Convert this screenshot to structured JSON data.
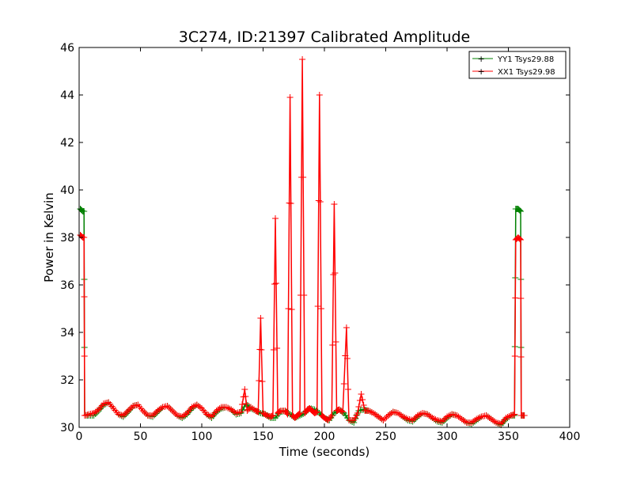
{
  "chart_data": {
    "type": "line",
    "title": "3C274, ID:21397 Calibrated Amplitude",
    "xlabel": "Time (seconds)",
    "ylabel": "Power in Kelvin",
    "xlim": [
      0,
      400
    ],
    "ylim": [
      30,
      46
    ],
    "xticks": [
      0,
      50,
      100,
      150,
      200,
      250,
      300,
      350,
      400
    ],
    "yticks": [
      30,
      32,
      34,
      36,
      38,
      40,
      42,
      44,
      46
    ],
    "grid": false,
    "legend_position": "top-right",
    "series": [
      {
        "name": "YY1 Tsys29.88",
        "color": "#008000",
        "marker": "+",
        "points": [
          [
            1,
            39.2
          ],
          [
            3,
            39.1
          ],
          [
            4,
            39.1
          ],
          [
            4.5,
            30.5
          ],
          [
            8,
            30.5
          ],
          [
            12,
            30.5
          ],
          [
            16,
            30.7
          ],
          [
            20,
            30.95
          ],
          [
            24,
            31.05
          ],
          [
            28,
            30.8
          ],
          [
            32,
            30.55
          ],
          [
            36,
            30.45
          ],
          [
            40,
            30.65
          ],
          [
            44,
            30.9
          ],
          [
            48,
            30.95
          ],
          [
            52,
            30.7
          ],
          [
            56,
            30.5
          ],
          [
            60,
            30.45
          ],
          [
            64,
            30.65
          ],
          [
            68,
            30.85
          ],
          [
            72,
            30.9
          ],
          [
            76,
            30.7
          ],
          [
            80,
            30.5
          ],
          [
            84,
            30.4
          ],
          [
            88,
            30.55
          ],
          [
            92,
            30.8
          ],
          [
            96,
            30.95
          ],
          [
            100,
            30.8
          ],
          [
            104,
            30.55
          ],
          [
            108,
            30.4
          ],
          [
            112,
            30.65
          ],
          [
            116,
            30.8
          ],
          [
            120,
            30.85
          ],
          [
            124,
            30.75
          ],
          [
            128,
            30.55
          ],
          [
            132,
            30.6
          ],
          [
            136,
            31.0
          ],
          [
            140,
            30.8
          ],
          [
            144,
            30.7
          ],
          [
            148,
            30.6
          ],
          [
            152,
            30.55
          ],
          [
            156,
            30.4
          ],
          [
            160,
            30.4
          ],
          [
            164,
            30.65
          ],
          [
            168,
            30.7
          ],
          [
            172,
            30.55
          ],
          [
            176,
            30.4
          ],
          [
            180,
            30.5
          ],
          [
            184,
            30.6
          ],
          [
            188,
            30.8
          ],
          [
            192,
            30.75
          ],
          [
            196,
            30.6
          ],
          [
            200,
            30.4
          ],
          [
            204,
            30.3
          ],
          [
            208,
            30.6
          ],
          [
            212,
            30.75
          ],
          [
            216,
            30.6
          ],
          [
            220,
            30.3
          ],
          [
            224,
            30.2
          ],
          [
            228,
            30.7
          ],
          [
            232,
            30.75
          ],
          [
            236,
            30.7
          ],
          [
            240,
            30.6
          ],
          [
            244,
            30.45
          ],
          [
            248,
            30.3
          ],
          [
            252,
            30.5
          ],
          [
            256,
            30.65
          ],
          [
            260,
            30.6
          ],
          [
            264,
            30.45
          ],
          [
            268,
            30.3
          ],
          [
            272,
            30.25
          ],
          [
            276,
            30.45
          ],
          [
            280,
            30.6
          ],
          [
            284,
            30.55
          ],
          [
            288,
            30.4
          ],
          [
            292,
            30.25
          ],
          [
            296,
            30.2
          ],
          [
            300,
            30.4
          ],
          [
            304,
            30.55
          ],
          [
            308,
            30.5
          ],
          [
            312,
            30.35
          ],
          [
            316,
            30.2
          ],
          [
            320,
            30.15
          ],
          [
            324,
            30.3
          ],
          [
            328,
            30.45
          ],
          [
            332,
            30.5
          ],
          [
            336,
            30.35
          ],
          [
            340,
            30.2
          ],
          [
            344,
            30.1
          ],
          [
            348,
            30.35
          ],
          [
            352,
            30.5
          ],
          [
            355,
            30.5
          ],
          [
            356,
            39.2
          ],
          [
            358,
            39.2
          ],
          [
            360,
            39.1
          ],
          [
            360.5,
            30.5
          ],
          [
            363,
            30.5
          ]
        ]
      },
      {
        "name": "XX1 Tsys29.98",
        "color": "#ff0000",
        "marker": "+",
        "points": [
          [
            1,
            38.1
          ],
          [
            3,
            38.0
          ],
          [
            4,
            38.0
          ],
          [
            4.5,
            30.5
          ],
          [
            8,
            30.55
          ],
          [
            12,
            30.6
          ],
          [
            16,
            30.75
          ],
          [
            20,
            31.0
          ],
          [
            24,
            31.05
          ],
          [
            28,
            30.8
          ],
          [
            32,
            30.55
          ],
          [
            36,
            30.5
          ],
          [
            40,
            30.7
          ],
          [
            44,
            30.9
          ],
          [
            48,
            30.95
          ],
          [
            52,
            30.7
          ],
          [
            56,
            30.5
          ],
          [
            60,
            30.5
          ],
          [
            64,
            30.7
          ],
          [
            68,
            30.85
          ],
          [
            72,
            30.9
          ],
          [
            76,
            30.7
          ],
          [
            80,
            30.5
          ],
          [
            84,
            30.45
          ],
          [
            88,
            30.6
          ],
          [
            92,
            30.85
          ],
          [
            96,
            30.95
          ],
          [
            100,
            30.8
          ],
          [
            104,
            30.55
          ],
          [
            108,
            30.45
          ],
          [
            112,
            30.7
          ],
          [
            116,
            30.85
          ],
          [
            120,
            30.85
          ],
          [
            124,
            30.75
          ],
          [
            128,
            30.6
          ],
          [
            132,
            30.65
          ],
          [
            135,
            31.6
          ],
          [
            137,
            30.7
          ],
          [
            140,
            30.85
          ],
          [
            144,
            30.7
          ],
          [
            146,
            30.65
          ],
          [
            148,
            34.6
          ],
          [
            150,
            30.6
          ],
          [
            153,
            30.5
          ],
          [
            156,
            30.45
          ],
          [
            158,
            30.5
          ],
          [
            160,
            38.8
          ],
          [
            162,
            30.6
          ],
          [
            164,
            30.7
          ],
          [
            168,
            30.7
          ],
          [
            170,
            30.55
          ],
          [
            172,
            43.9
          ],
          [
            174,
            30.5
          ],
          [
            176,
            30.4
          ],
          [
            178,
            30.5
          ],
          [
            180,
            30.6
          ],
          [
            182,
            45.5
          ],
          [
            184,
            30.6
          ],
          [
            186,
            30.75
          ],
          [
            188,
            30.8
          ],
          [
            190,
            30.7
          ],
          [
            192,
            30.6
          ],
          [
            194,
            30.65
          ],
          [
            196,
            44.0
          ],
          [
            198,
            30.5
          ],
          [
            200,
            30.4
          ],
          [
            203,
            30.3
          ],
          [
            206,
            30.5
          ],
          [
            208,
            39.4
          ],
          [
            210,
            30.7
          ],
          [
            212,
            30.75
          ],
          [
            215,
            30.65
          ],
          [
            218,
            34.2
          ],
          [
            220,
            30.3
          ],
          [
            224,
            30.3
          ],
          [
            227,
            30.6
          ],
          [
            230,
            31.4
          ],
          [
            233,
            30.7
          ],
          [
            236,
            30.7
          ],
          [
            240,
            30.6
          ],
          [
            244,
            30.45
          ],
          [
            248,
            30.3
          ],
          [
            252,
            30.5
          ],
          [
            256,
            30.65
          ],
          [
            260,
            30.6
          ],
          [
            264,
            30.45
          ],
          [
            268,
            30.35
          ],
          [
            272,
            30.3
          ],
          [
            276,
            30.5
          ],
          [
            280,
            30.6
          ],
          [
            284,
            30.55
          ],
          [
            288,
            30.4
          ],
          [
            292,
            30.3
          ],
          [
            296,
            30.25
          ],
          [
            300,
            30.45
          ],
          [
            304,
            30.55
          ],
          [
            308,
            30.5
          ],
          [
            312,
            30.35
          ],
          [
            316,
            30.2
          ],
          [
            320,
            30.2
          ],
          [
            324,
            30.35
          ],
          [
            328,
            30.45
          ],
          [
            332,
            30.5
          ],
          [
            336,
            30.35
          ],
          [
            340,
            30.2
          ],
          [
            344,
            30.15
          ],
          [
            348,
            30.4
          ],
          [
            352,
            30.5
          ],
          [
            355,
            30.55
          ],
          [
            356,
            37.9
          ],
          [
            358,
            38.0
          ],
          [
            360,
            37.9
          ],
          [
            360.5,
            30.5
          ],
          [
            363,
            30.5
          ]
        ]
      }
    ]
  }
}
